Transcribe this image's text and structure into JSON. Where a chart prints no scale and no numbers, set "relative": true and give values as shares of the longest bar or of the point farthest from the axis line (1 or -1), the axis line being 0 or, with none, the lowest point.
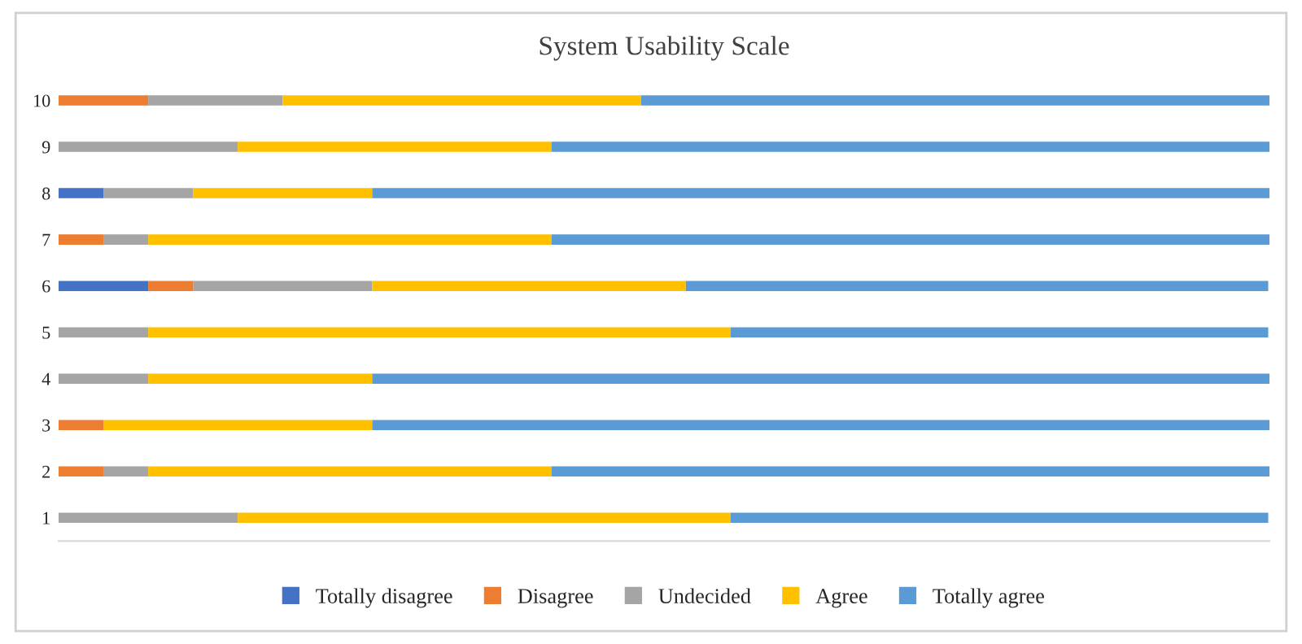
{
  "chart_data": {
    "type": "bar",
    "orientation": "horizontal",
    "stacked": true,
    "relative": true,
    "title": "System Usability Scale",
    "categories": [
      "10",
      "9",
      "8",
      "7",
      "6",
      "5",
      "4",
      "3",
      "2",
      "1"
    ],
    "series": [
      {
        "name": "Totally disagree",
        "color": "#4472c4",
        "values": [
          0,
          0,
          0.037,
          0,
          0.074,
          0,
          0,
          0,
          0,
          0
        ]
      },
      {
        "name": "Disagree",
        "color": "#ed7d31",
        "values": [
          0.074,
          0,
          0,
          0.037,
          0.037,
          0,
          0,
          0.037,
          0.037,
          0
        ]
      },
      {
        "name": "Undecided",
        "color": "#a5a5a5",
        "values": [
          0.111,
          0.148,
          0.074,
          0.037,
          0.148,
          0.074,
          0.074,
          0,
          0.037,
          0.148
        ]
      },
      {
        "name": "Agree",
        "color": "#ffc000",
        "values": [
          0.296,
          0.259,
          0.148,
          0.333,
          0.259,
          0.481,
          0.185,
          0.222,
          0.333,
          0.407
        ]
      },
      {
        "name": "Totally agree",
        "color": "#5b9bd5",
        "values": [
          0.519,
          0.593,
          0.741,
          0.593,
          0.481,
          0.444,
          0.741,
          0.741,
          0.593,
          0.444
        ]
      }
    ],
    "legend": "bottom",
    "grid": false
  }
}
